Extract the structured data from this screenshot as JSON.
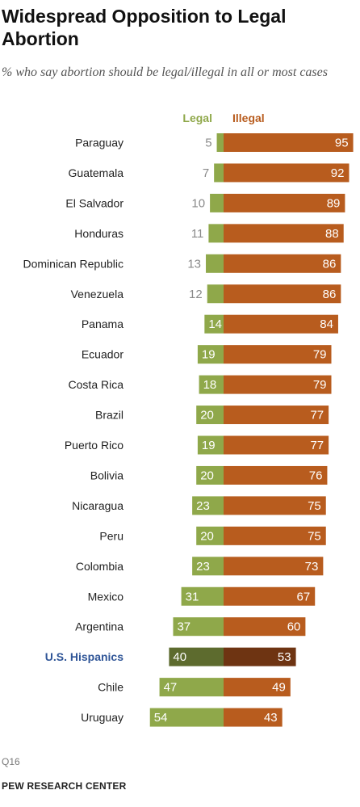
{
  "title": "Widespread Opposition to Legal Abortion",
  "subtitle": "% who say abortion should be legal/illegal in all or most cases",
  "source_note": "Q16",
  "organization": "PEW RESEARCH CENTER",
  "colors": {
    "legal": "#8fa84a",
    "illegal": "#b85c1e",
    "legal_highlight": "#5d6b2e",
    "illegal_highlight": "#6e3412",
    "legal_label": "#8fa84a",
    "illegal_label": "#b85c1e",
    "highlight_label": "#2f5597"
  },
  "chart_data": {
    "type": "bar",
    "orientation": "horizontal-diverging",
    "title": "Widespread Opposition to Legal Abortion",
    "subtitle": "% who say abortion should be legal/illegal in all or most cases",
    "categories": [
      "Paraguay",
      "Guatemala",
      "El Salvador",
      "Honduras",
      "Dominican Republic",
      "Venezuela",
      "Panama",
      "Ecuador",
      "Costa Rica",
      "Brazil",
      "Puerto Rico",
      "Bolivia",
      "Nicaragua",
      "Peru",
      "Colombia",
      "Mexico",
      "Argentina",
      "U.S. Hispanics",
      "Chile",
      "Uruguay"
    ],
    "highlight": "U.S. Hispanics",
    "series": [
      {
        "name": "Legal",
        "values": [
          5,
          7,
          10,
          11,
          13,
          12,
          14,
          19,
          18,
          20,
          19,
          20,
          23,
          20,
          23,
          31,
          37,
          40,
          47,
          54
        ]
      },
      {
        "name": "Illegal",
        "values": [
          95,
          92,
          89,
          88,
          86,
          86,
          84,
          79,
          79,
          77,
          77,
          76,
          75,
          75,
          73,
          67,
          60,
          53,
          49,
          43
        ]
      }
    ]
  }
}
